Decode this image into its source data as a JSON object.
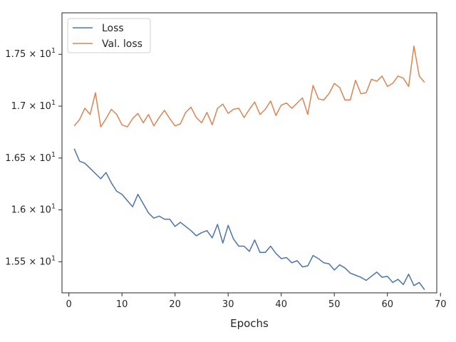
{
  "chart_data": {
    "type": "line",
    "title": "",
    "xlabel": "Epochs",
    "ylabel": "",
    "xlim": [
      -1.3,
      69.3
    ],
    "ylim": [
      15.2,
      17.9
    ],
    "xticks": [
      0,
      10,
      20,
      30,
      40,
      50,
      60,
      70
    ],
    "yticks": [
      {
        "value": 15.5,
        "mantissa": "1.55",
        "exp": "1"
      },
      {
        "value": 16.0,
        "mantissa": "1.6",
        "exp": "1"
      },
      {
        "value": 16.5,
        "mantissa": "1.65",
        "exp": "1"
      },
      {
        "value": 17.0,
        "mantissa": "1.7",
        "exp": "1"
      },
      {
        "value": 17.5,
        "mantissa": "1.75",
        "exp": "1"
      }
    ],
    "grid": false,
    "legend_position": "top-left",
    "x": [
      1,
      2,
      3,
      4,
      5,
      6,
      7,
      8,
      9,
      10,
      11,
      12,
      13,
      14,
      15,
      16,
      17,
      18,
      19,
      20,
      21,
      22,
      23,
      24,
      25,
      26,
      27,
      28,
      29,
      30,
      31,
      32,
      33,
      34,
      35,
      36,
      37,
      38,
      39,
      40,
      41,
      42,
      43,
      44,
      45,
      46,
      47,
      48,
      49,
      50,
      51,
      52,
      53,
      54,
      55,
      56,
      57,
      58,
      59,
      60,
      61,
      62,
      63,
      64,
      65,
      66,
      67
    ],
    "series": [
      {
        "name": "Loss",
        "color": "#4c72b0",
        "values": [
          16.59,
          16.47,
          16.45,
          16.4,
          16.35,
          16.3,
          16.36,
          16.26,
          16.18,
          16.15,
          16.09,
          16.03,
          16.15,
          16.06,
          15.97,
          15.92,
          15.94,
          15.91,
          15.91,
          15.84,
          15.88,
          15.84,
          15.8,
          15.75,
          15.78,
          15.8,
          15.73,
          15.86,
          15.68,
          15.85,
          15.72,
          15.65,
          15.65,
          15.6,
          15.71,
          15.59,
          15.59,
          15.65,
          15.58,
          15.53,
          15.54,
          15.49,
          15.51,
          15.45,
          15.46,
          15.56,
          15.53,
          15.49,
          15.48,
          15.42,
          15.47,
          15.44,
          15.39,
          15.37,
          15.35,
          15.32,
          15.36,
          15.4,
          15.35,
          15.36,
          15.3,
          15.33,
          15.28,
          15.38,
          15.27,
          15.3,
          15.23
        ]
      },
      {
        "name": "Val. loss",
        "color": "#dd8452",
        "values": [
          16.81,
          16.87,
          16.98,
          16.92,
          17.13,
          16.8,
          16.88,
          16.97,
          16.92,
          16.82,
          16.8,
          16.88,
          16.93,
          16.84,
          16.92,
          16.81,
          16.89,
          16.96,
          16.88,
          16.81,
          16.83,
          16.94,
          16.99,
          16.89,
          16.84,
          16.94,
          16.82,
          16.98,
          17.02,
          16.93,
          16.97,
          16.98,
          16.89,
          16.97,
          17.04,
          16.92,
          16.97,
          17.05,
          16.91,
          17.01,
          17.03,
          16.98,
          17.03,
          17.08,
          16.92,
          17.2,
          17.07,
          17.06,
          17.12,
          17.22,
          17.18,
          17.06,
          17.06,
          17.25,
          17.12,
          17.13,
          17.26,
          17.24,
          17.29,
          17.19,
          17.22,
          17.29,
          17.27,
          17.19,
          17.58,
          17.29,
          17.23
        ]
      }
    ]
  }
}
